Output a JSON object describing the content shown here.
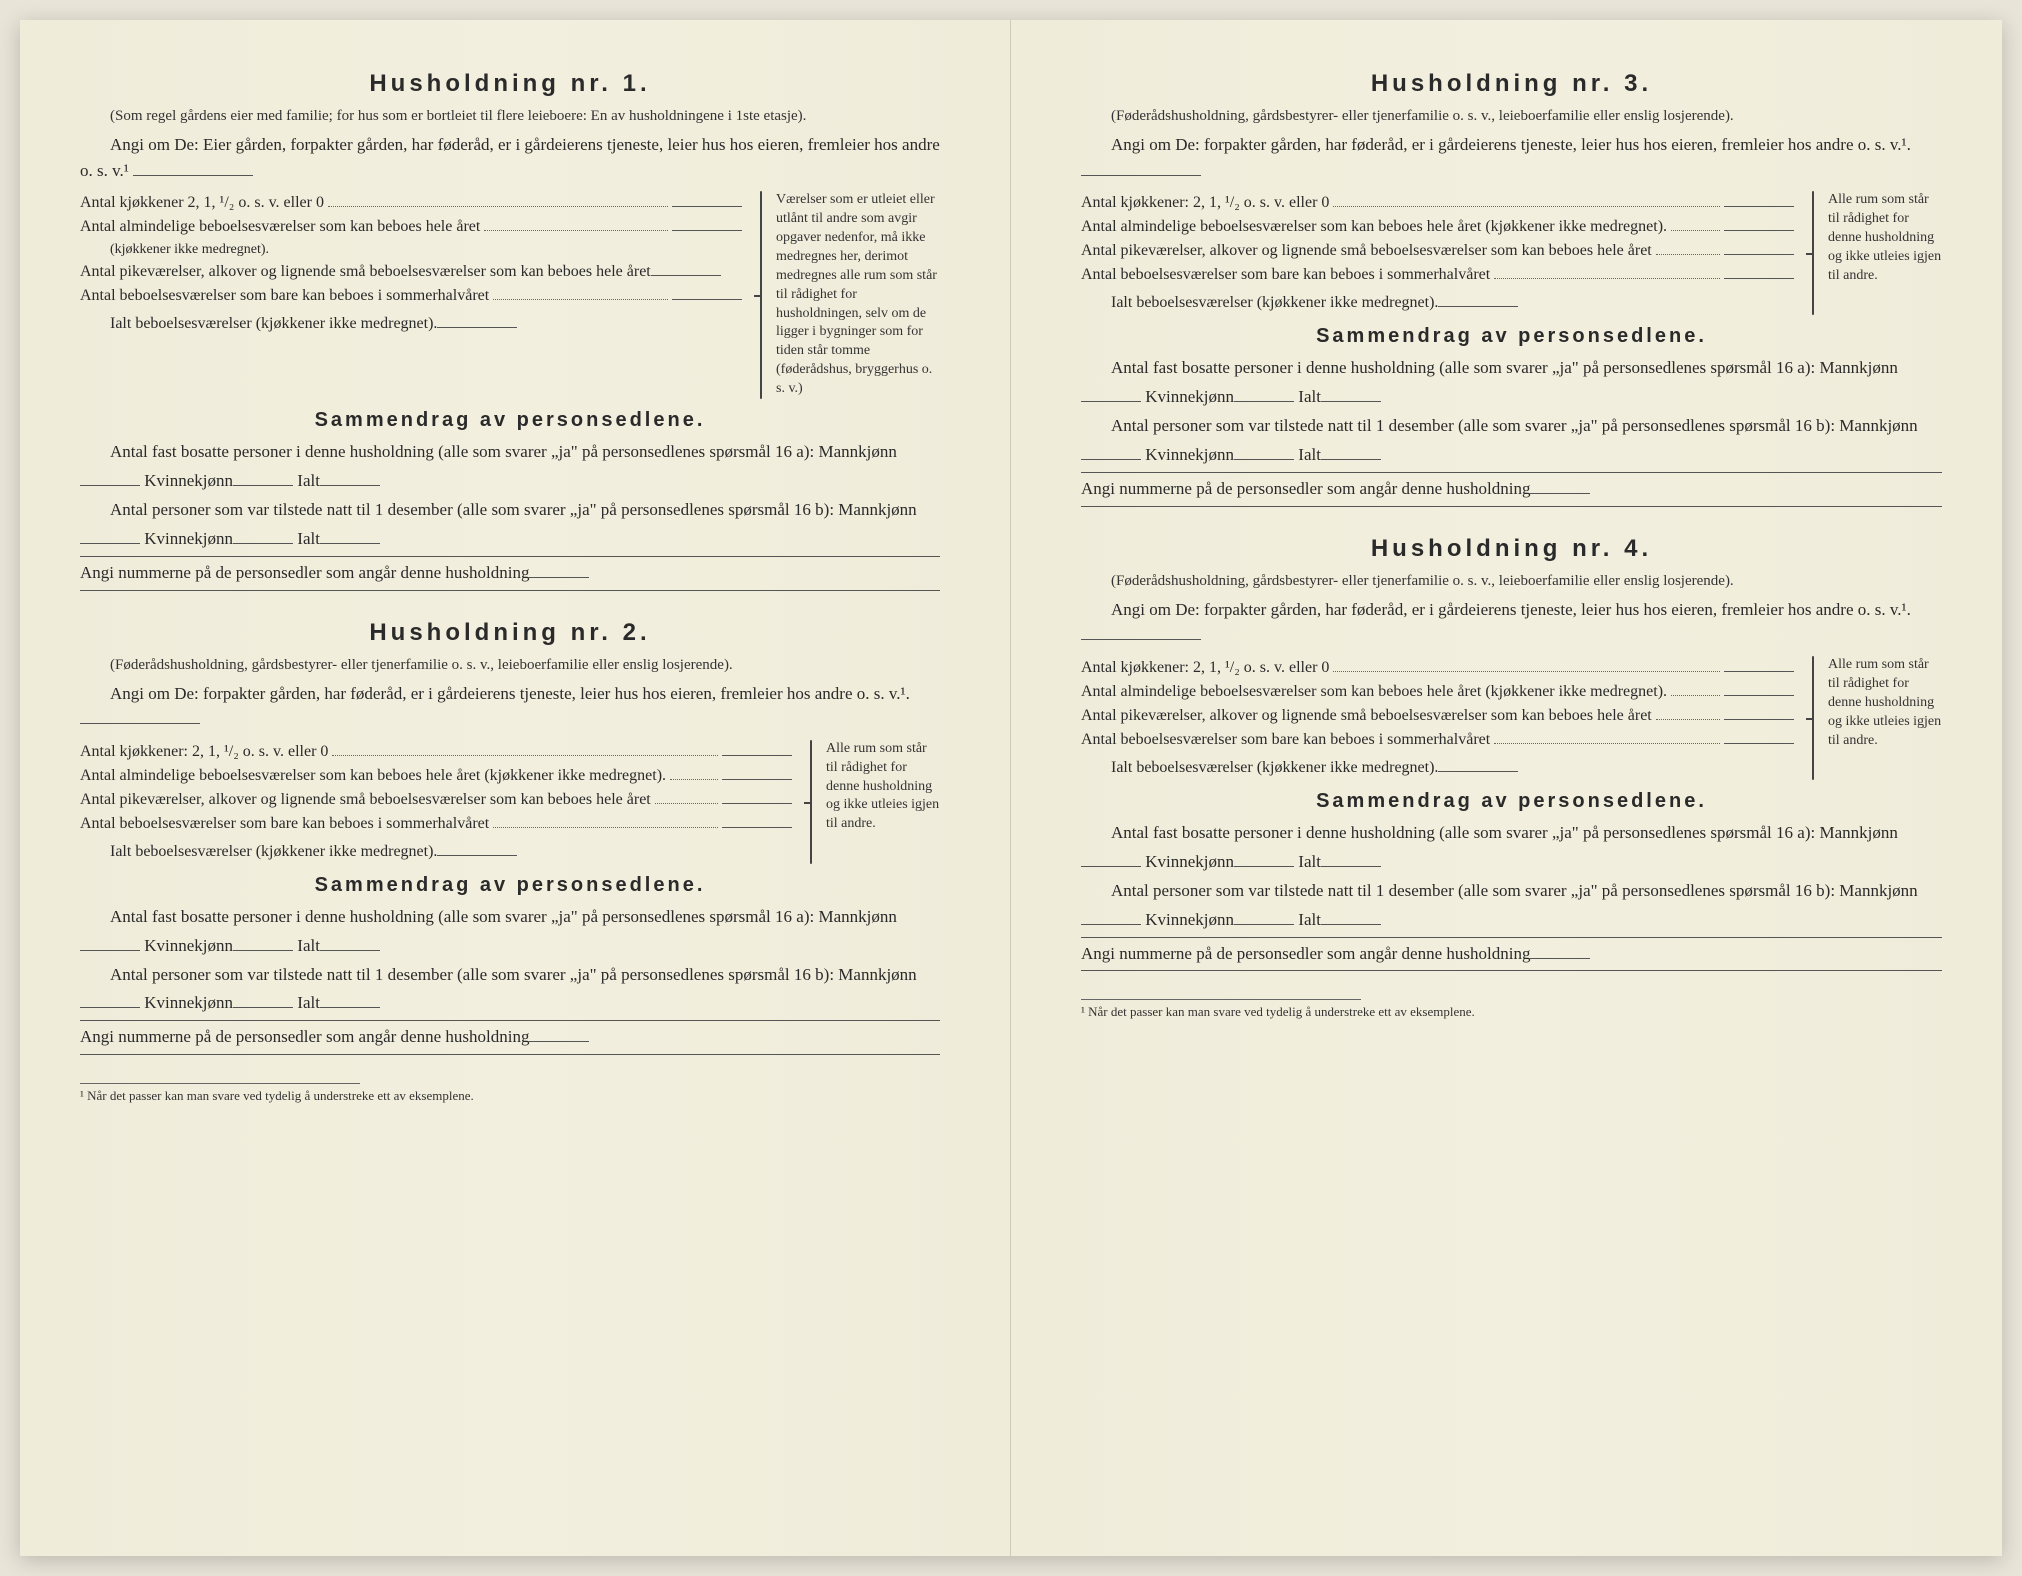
{
  "colors": {
    "paper": "#f2eedd",
    "ink": "#2a2a2a",
    "rule": "#555555"
  },
  "typography": {
    "title_fontsize": 24,
    "title_letterspacing": 4,
    "body_fontsize": 17,
    "subtitle_fontsize": 15,
    "sidenote_fontsize": 14,
    "footnote_fontsize": 13
  },
  "h1": {
    "title": "Husholdning nr. 1.",
    "subtitle": "(Som regel gårdens eier med familie; for hus som er bortleiet til flere leieboere: En av husholdningene i 1ste etasje).",
    "instruction": "Angi om De: Eier gården, forpakter gården, har føderåd, er i gårdeierens tjeneste, leier hus hos eieren, fremleier hos andre o. s. v.¹",
    "rooms": {
      "kitchens": "Antal kjøkkener 2, 1, ¹/₂ o. s. v. eller 0",
      "ordinary": "Antal almindelige beboelsesværelser som kan beboes hele året",
      "ordinary_sub": "(kjøkkener ikke medregnet).",
      "small": "Antal pikeværelser, alkover og lignende små beboelsesværelser som kan beboes hele året",
      "summer": "Antal beboelsesværelser som bare kan beboes i sommerhalvåret",
      "total": "Ialt beboelsesværelser (kjøkkener ikke medregnet)."
    },
    "sidenote": "Værelser som er utleiet eller utlånt til andre som avgir opgaver nedenfor, må ikke medregnes her, derimot medregnes alle rum som står til rådighet for husholdningen, selv om de ligger i bygninger som for tiden står tomme (føderådshus, bryggerhus o. s. v.)"
  },
  "h2": {
    "title": "Husholdning nr. 2.",
    "subtitle": "(Føderådshusholdning, gårdsbestyrer- eller tjenerfamilie o. s. v., leieboerfamilie eller enslig losjerende).",
    "instruction": "Angi om De: forpakter gården, har føderåd, er i gårdeierens tjeneste, leier hus hos eieren, fremleier hos andre o. s. v.¹.",
    "rooms": {
      "kitchens": "Antal kjøkkener: 2, 1, ¹/₂ o. s. v. eller 0",
      "ordinary": "Antal almindelige beboelsesværelser som kan beboes hele året (kjøkkener ikke medregnet).",
      "small": "Antal pikeværelser, alkover og lignende små beboelsesværelser som kan beboes hele året",
      "summer": "Antal beboelsesværelser som bare kan beboes i sommerhalvåret",
      "total": "Ialt beboelsesværelser (kjøkkener ikke medregnet)."
    },
    "sidenote": "Alle rum som står til rådighet for denne husholdning og ikke utleies igjen til andre."
  },
  "h3": {
    "title": "Husholdning nr. 3.",
    "subtitle": "(Føderådshusholdning, gårdsbestyrer- eller tjenerfamilie o. s. v., leieboerfamilie eller enslig losjerende).",
    "instruction": "Angi om De: forpakter gården, har føderåd, er i gårdeierens tjeneste, leier hus hos eieren, fremleier hos andre o. s. v.¹.",
    "rooms": {
      "kitchens": "Antal kjøkkener: 2, 1, ¹/₂ o. s. v. eller 0",
      "ordinary": "Antal almindelige beboelsesværelser som kan beboes hele året (kjøkkener ikke medregnet).",
      "small": "Antal pikeværelser, alkover og lignende små beboelsesværelser som kan beboes hele året",
      "summer": "Antal beboelsesværelser som bare kan beboes i sommerhalvåret",
      "total": "Ialt beboelsesværelser (kjøkkener ikke medregnet)."
    },
    "sidenote": "Alle rum som står til rådighet for denne husholdning og ikke utleies igjen til andre."
  },
  "h4": {
    "title": "Husholdning nr. 4.",
    "subtitle": "(Føderådshusholdning, gårdsbestyrer- eller tjenerfamilie o. s. v., leieboerfamilie eller enslig losjerende).",
    "instruction": "Angi om De: forpakter gården, har føderåd, er i gårdeierens tjeneste, leier hus hos eieren, fremleier hos andre o. s. v.¹.",
    "rooms": {
      "kitchens": "Antal kjøkkener: 2, 1, ¹/₂ o. s. v. eller 0",
      "ordinary": "Antal almindelige beboelsesværelser som kan beboes hele året (kjøkkener ikke medregnet).",
      "small": "Antal pikeværelser, alkover og lignende små beboelsesværelser som kan beboes hele året",
      "summer": "Antal beboelsesværelser som bare kan beboes i sommerhalvåret",
      "total": "Ialt beboelsesværelser (kjøkkener ikke medregnet)."
    },
    "sidenote": "Alle rum som står til rådighet for denne husholdning og ikke utleies igjen til andre."
  },
  "summary": {
    "title": "Sammendrag av personsedlene.",
    "line1_a": "Antal fast bosatte personer i denne husholdning (alle som svarer „ja\" på personsedlenes spørsmål 16 a): Mannkjønn",
    "kvinne": "Kvinnekjønn",
    "ialt": "Ialt",
    "line2_a": "Antal personer som var tilstede natt til 1 desember (alle som svarer „ja\" på personsedlenes spørsmål 16 b): Mannkjønn",
    "numbers": "Angi nummerne på de personsedler som angår denne husholdning"
  },
  "footnote": "¹ Når det passer kan man svare ved tydelig å understreke ett av eksemplene."
}
